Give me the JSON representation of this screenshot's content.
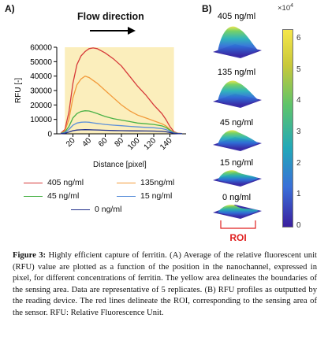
{
  "panel_a": {
    "label": "A)",
    "flow_label": "Flow direction",
    "y_axis_label": "RFU [-]",
    "x_axis_label": "Distance [pixel]",
    "chart_data": {
      "type": "line",
      "xlabel": "Distance [pixel]",
      "ylabel": "RFU [-]",
      "xlim": [
        0,
        160
      ],
      "ylim": [
        0,
        60000
      ],
      "x_ticks": [
        20,
        40,
        60,
        80,
        100,
        120,
        140
      ],
      "y_ticks": [
        0,
        10000,
        20000,
        30000,
        40000,
        50000,
        60000
      ],
      "y_tick_labels": [
        "0",
        "10000",
        "20000",
        "30000",
        "40000",
        "50000",
        "60000"
      ],
      "sensing_area": {
        "x_start": 10,
        "x_end": 145,
        "color": "#fbeebc"
      },
      "series": [
        {
          "name": "405 ng/ml",
          "color": "#d63a3a",
          "x": [
            5,
            10,
            15,
            20,
            25,
            30,
            35,
            40,
            45,
            50,
            60,
            70,
            80,
            90,
            100,
            110,
            120,
            130,
            135,
            140,
            145,
            150,
            155
          ],
          "y": [
            500,
            3000,
            15000,
            35000,
            48000,
            54000,
            57000,
            59000,
            59500,
            59000,
            56000,
            52000,
            47000,
            40000,
            33000,
            27000,
            20000,
            14000,
            10000,
            5000,
            1500,
            400,
            200
          ]
        },
        {
          "name": "135ng/ml",
          "color": "#f29a3a",
          "x": [
            5,
            10,
            15,
            20,
            25,
            30,
            35,
            40,
            45,
            50,
            60,
            70,
            80,
            90,
            100,
            110,
            120,
            130,
            135,
            140,
            145,
            150,
            155
          ],
          "y": [
            400,
            2000,
            10000,
            25000,
            34000,
            38000,
            40000,
            39000,
            37000,
            35000,
            30000,
            25000,
            20000,
            16000,
            13000,
            11000,
            9000,
            7000,
            5500,
            3000,
            1000,
            300,
            150
          ]
        },
        {
          "name": "45 ng/ml",
          "color": "#49b146",
          "x": [
            5,
            10,
            15,
            20,
            25,
            30,
            35,
            40,
            45,
            50,
            60,
            70,
            80,
            90,
            100,
            110,
            120,
            130,
            135,
            140,
            145,
            150,
            155
          ],
          "y": [
            300,
            1200,
            5000,
            11000,
            14000,
            15500,
            16000,
            15800,
            15000,
            14000,
            12000,
            10500,
            9500,
            8500,
            7500,
            7000,
            6500,
            5500,
            4500,
            2500,
            800,
            250,
            120
          ]
        },
        {
          "name": "15 ng/ml",
          "color": "#5b8fd9",
          "x": [
            5,
            10,
            15,
            20,
            25,
            30,
            35,
            40,
            45,
            50,
            60,
            70,
            80,
            90,
            100,
            110,
            120,
            130,
            135,
            140,
            145,
            150,
            155
          ],
          "y": [
            200,
            800,
            3000,
            6000,
            7500,
            8000,
            8200,
            8000,
            7600,
            7200,
            6500,
            6000,
            5600,
            5200,
            4800,
            4500,
            4200,
            3600,
            3000,
            1800,
            600,
            200,
            100
          ]
        },
        {
          "name": "0 ng/ml",
          "color": "#1f2d8a",
          "x": [
            5,
            10,
            15,
            20,
            25,
            30,
            35,
            40,
            45,
            50,
            60,
            70,
            80,
            90,
            100,
            110,
            120,
            130,
            135,
            140,
            145,
            150,
            155
          ],
          "y": [
            100,
            400,
            1200,
            2200,
            2600,
            2800,
            2900,
            2850,
            2750,
            2650,
            2450,
            2300,
            2200,
            2100,
            2000,
            1950,
            1900,
            1700,
            1400,
            900,
            300,
            120,
            80
          ]
        }
      ]
    },
    "legend": [
      {
        "label": "405 ng/ml",
        "color": "#d63a3a"
      },
      {
        "label": "135ng/ml",
        "color": "#f29a3a"
      },
      {
        "label": "45 ng/ml",
        "color": "#49b146"
      },
      {
        "label": "15 ng/ml",
        "color": "#5b8fd9"
      },
      {
        "label": "0 ng/ml",
        "color": "#1f2d8a"
      }
    ]
  },
  "panel_b": {
    "label": "B)",
    "profiles": [
      "405 ng/ml",
      "135 ng/ml",
      "45 ng/ml",
      "15 ng/ml",
      "0 ng/ml"
    ],
    "roi_label": "ROI",
    "colorbar": {
      "exponent": "×10",
      "exponent_power": "4",
      "ticks": [
        "6",
        "5",
        "4",
        "3",
        "2",
        "1",
        "0"
      ],
      "colors": [
        "#3a1f9e",
        "#3a6fd8",
        "#22a8b8",
        "#5fc46a",
        "#c8c83a",
        "#f6e64a"
      ]
    }
  },
  "caption": {
    "head": "Figure 3:",
    "text": " Highly efficient capture of ferritin. (A) Average of the relative fluorescent unit (RFU) value are plotted as a function of the position in the nanochannel, expressed in pixel, for different concentrations of ferritin. The yellow area delineates the boundaries of the sensing area. Data are representative of 5 replicates. (B) RFU profiles as outputted by the reading device. The red lines delineate the ROI, corresponding to the sensing area of the sensor. RFU: Relative Fluorescence Unit."
  }
}
